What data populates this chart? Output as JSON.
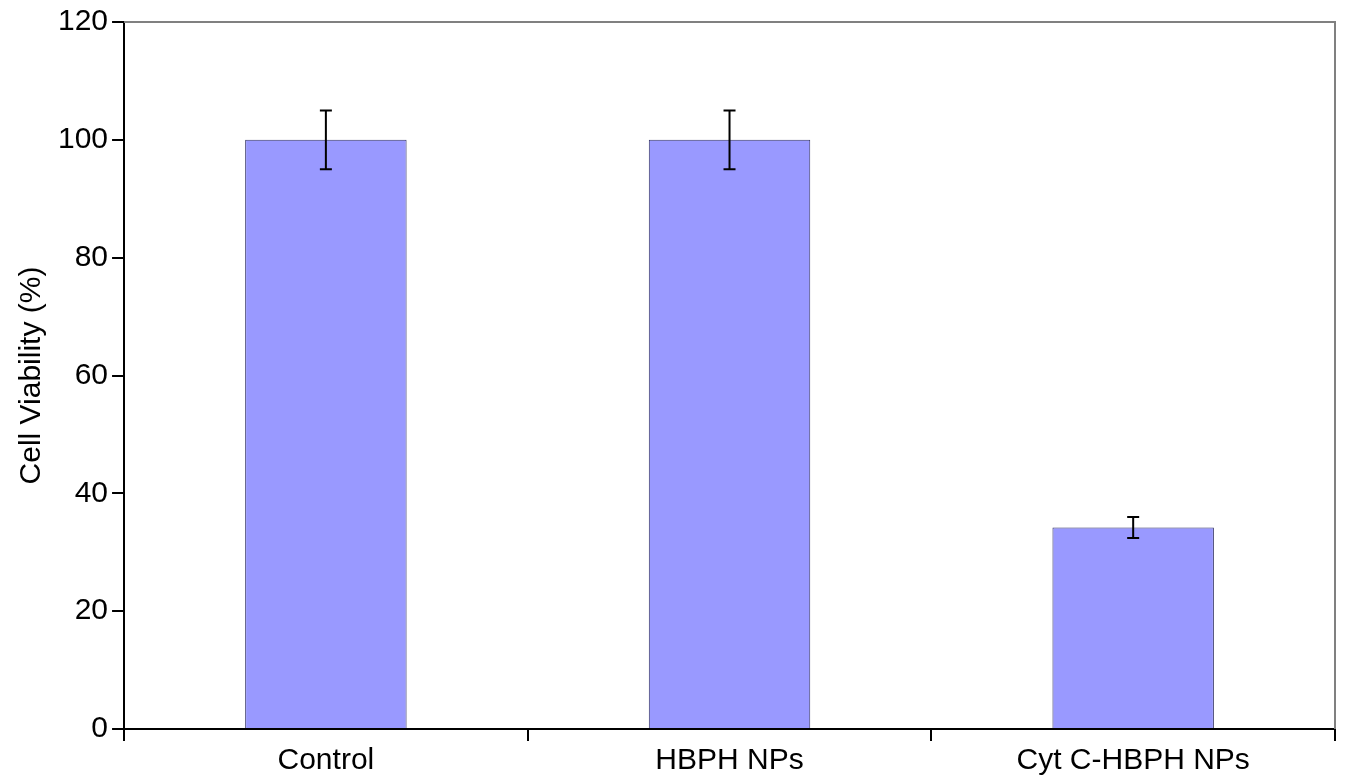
{
  "chart_data": {
    "type": "bar",
    "categories": [
      "Control",
      "HBPH NPs",
      "Cyt C-HBPH NPs"
    ],
    "values": [
      100,
      100,
      34.2
    ],
    "errors": [
      5,
      5,
      1.8
    ],
    "color": "#9999ff",
    "ylabel": "Cell Viability (%)",
    "ylim": [
      0,
      120
    ],
    "yticks": [
      0,
      20,
      40,
      60,
      80,
      100,
      120
    ],
    "grid": false,
    "legend": false
  }
}
